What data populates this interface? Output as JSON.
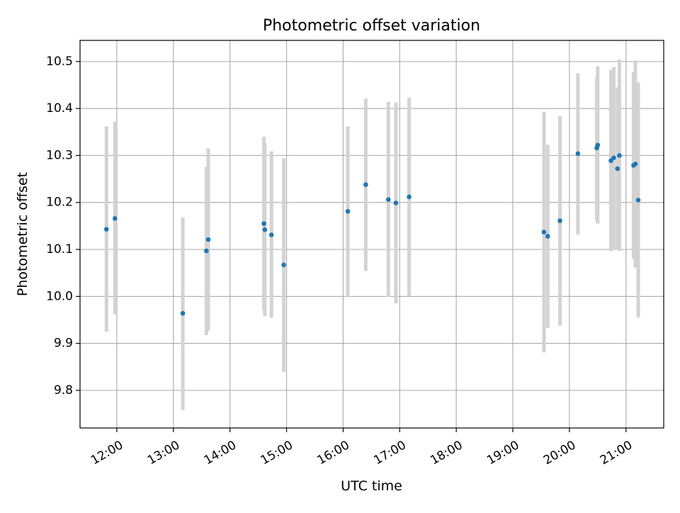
{
  "chart_data": {
    "type": "scatter",
    "title": "Photometric offset variation",
    "xlabel": "UTC time",
    "ylabel": "Photometric offset",
    "xlim": [
      "11:21",
      "21:40"
    ],
    "ylim": [
      9.72,
      10.545
    ],
    "grid": true,
    "x_ticks": [
      "12:00",
      "13:00",
      "14:00",
      "15:00",
      "16:00",
      "17:00",
      "18:00",
      "19:00",
      "20:00",
      "21:00"
    ],
    "y_ticks": [
      "9.8",
      "9.9",
      "10.0",
      "10.1",
      "10.2",
      "10.3",
      "10.4",
      "10.5"
    ],
    "series": [
      {
        "point_color": "#1f77b4",
        "errorbar_color": "#d3d3d3",
        "points": [
          {
            "x": "11:49",
            "y": 10.143,
            "lo": 9.925,
            "hi": 10.362
          },
          {
            "x": "11:58",
            "y": 10.166,
            "lo": 9.962,
            "hi": 10.372
          },
          {
            "x": "13:10",
            "y": 9.964,
            "lo": 9.758,
            "hi": 10.168
          },
          {
            "x": "13:35",
            "y": 10.097,
            "lo": 9.918,
            "hi": 10.276
          },
          {
            "x": "13:37",
            "y": 10.121,
            "lo": 9.927,
            "hi": 10.315
          },
          {
            "x": "14:36",
            "y": 10.155,
            "lo": 9.97,
            "hi": 10.34
          },
          {
            "x": "14:37",
            "y": 10.142,
            "lo": 9.958,
            "hi": 10.326
          },
          {
            "x": "14:44",
            "y": 10.131,
            "lo": 9.955,
            "hi": 10.309
          },
          {
            "x": "14:57",
            "y": 10.067,
            "lo": 9.839,
            "hi": 10.294
          },
          {
            "x": "16:05",
            "y": 10.181,
            "lo": 9.998,
            "hi": 10.362
          },
          {
            "x": "16:24",
            "y": 10.238,
            "lo": 10.054,
            "hi": 10.421
          },
          {
            "x": "16:48",
            "y": 10.206,
            "lo": 9.999,
            "hi": 10.414
          },
          {
            "x": "16:56",
            "y": 10.199,
            "lo": 9.985,
            "hi": 10.413
          },
          {
            "x": "17:10",
            "y": 10.212,
            "lo": 10.001,
            "hi": 10.423
          },
          {
            "x": "19:33",
            "y": 10.137,
            "lo": 9.881,
            "hi": 10.393
          },
          {
            "x": "19:37",
            "y": 10.128,
            "lo": 9.933,
            "hi": 10.323
          },
          {
            "x": "19:50",
            "y": 10.161,
            "lo": 9.938,
            "hi": 10.384
          },
          {
            "x": "20:09",
            "y": 10.304,
            "lo": 10.132,
            "hi": 10.475
          },
          {
            "x": "20:29",
            "y": 10.316,
            "lo": 10.162,
            "hi": 10.466
          },
          {
            "x": "20:30",
            "y": 10.322,
            "lo": 10.155,
            "hi": 10.49
          },
          {
            "x": "20:44",
            "y": 10.289,
            "lo": 10.096,
            "hi": 10.482
          },
          {
            "x": "20:47",
            "y": 10.295,
            "lo": 10.1,
            "hi": 10.488
          },
          {
            "x": "20:51",
            "y": 10.272,
            "lo": 10.099,
            "hi": 10.445
          },
          {
            "x": "20:53",
            "y": 10.3,
            "lo": 10.097,
            "hi": 10.504
          },
          {
            "x": "21:08",
            "y": 10.279,
            "lo": 10.08,
            "hi": 10.478
          },
          {
            "x": "21:10",
            "y": 10.282,
            "lo": 10.061,
            "hi": 10.502
          },
          {
            "x": "21:13",
            "y": 10.205,
            "lo": 9.955,
            "hi": 10.455
          }
        ]
      }
    ]
  }
}
